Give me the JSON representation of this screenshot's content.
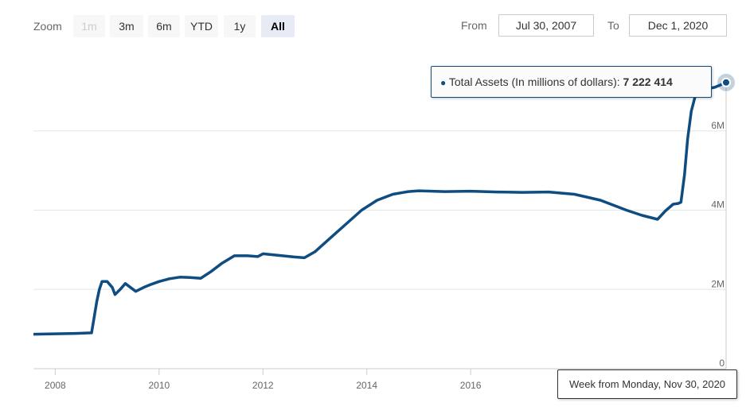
{
  "toolbar": {
    "zoom_label": "Zoom",
    "buttons": [
      {
        "label": "1m",
        "state": "disabled"
      },
      {
        "label": "3m",
        "state": "normal"
      },
      {
        "label": "6m",
        "state": "normal"
      },
      {
        "label": "YTD",
        "state": "normal"
      },
      {
        "label": "1y",
        "state": "normal"
      },
      {
        "label": "All",
        "state": "active"
      }
    ],
    "from_label": "From",
    "from_value": "Jul 30, 2007",
    "to_label": "To",
    "to_value": "Dec 1, 2020"
  },
  "tooltip": {
    "series_label": "Total Assets (In millions of dollars):",
    "value_text": "7 222 414"
  },
  "crosshair_label": "Week from Monday, Nov 30, 2020",
  "colors": {
    "line": "#0f4c81",
    "grid": "#e6e6e6",
    "active_button": "#e6ebf5"
  },
  "chart_data": {
    "type": "line",
    "xlabel": "",
    "ylabel": "",
    "x_ticks": [
      "2008",
      "2010",
      "2012",
      "2014",
      "2016"
    ],
    "y_ticks": [
      "0",
      "2M",
      "4M",
      "6M"
    ],
    "xlim": [
      2007.58,
      2020.92
    ],
    "ylim": [
      0,
      8000000
    ],
    "grid": true,
    "legend": "none",
    "series": [
      {
        "values": [
          [
            2007.58,
            870000
          ],
          [
            2008.0,
            880000
          ],
          [
            2008.4,
            890000
          ],
          [
            2008.7,
            905000
          ],
          [
            2008.75,
            1300000
          ],
          [
            2008.8,
            1700000
          ],
          [
            2008.85,
            2000000
          ],
          [
            2008.9,
            2200000
          ],
          [
            2009.0,
            2200000
          ],
          [
            2009.1,
            2050000
          ],
          [
            2009.15,
            1870000
          ],
          [
            2009.25,
            2000000
          ],
          [
            2009.35,
            2150000
          ],
          [
            2009.45,
            2050000
          ],
          [
            2009.55,
            1950000
          ],
          [
            2009.7,
            2050000
          ],
          [
            2009.85,
            2130000
          ],
          [
            2010.0,
            2200000
          ],
          [
            2010.2,
            2270000
          ],
          [
            2010.4,
            2310000
          ],
          [
            2010.6,
            2300000
          ],
          [
            2010.8,
            2280000
          ],
          [
            2011.0,
            2450000
          ],
          [
            2011.2,
            2650000
          ],
          [
            2011.45,
            2850000
          ],
          [
            2011.7,
            2850000
          ],
          [
            2011.9,
            2830000
          ],
          [
            2012.0,
            2900000
          ],
          [
            2012.3,
            2860000
          ],
          [
            2012.6,
            2820000
          ],
          [
            2012.8,
            2800000
          ],
          [
            2013.0,
            2950000
          ],
          [
            2013.3,
            3300000
          ],
          [
            2013.6,
            3650000
          ],
          [
            2013.9,
            4000000
          ],
          [
            2014.2,
            4250000
          ],
          [
            2014.5,
            4400000
          ],
          [
            2014.8,
            4470000
          ],
          [
            2015.0,
            4490000
          ],
          [
            2015.5,
            4470000
          ],
          [
            2016.0,
            4480000
          ],
          [
            2016.5,
            4460000
          ],
          [
            2017.0,
            4450000
          ],
          [
            2017.5,
            4460000
          ],
          [
            2018.0,
            4400000
          ],
          [
            2018.5,
            4250000
          ],
          [
            2019.0,
            4000000
          ],
          [
            2019.3,
            3870000
          ],
          [
            2019.6,
            3770000
          ],
          [
            2019.75,
            3980000
          ],
          [
            2019.9,
            4150000
          ],
          [
            2020.0,
            4170000
          ],
          [
            2020.05,
            4200000
          ],
          [
            2020.12,
            4900000
          ],
          [
            2020.18,
            5800000
          ],
          [
            2020.25,
            6500000
          ],
          [
            2020.35,
            7000000
          ],
          [
            2020.5,
            7050000
          ],
          [
            2020.7,
            7100000
          ],
          [
            2020.85,
            7180000
          ],
          [
            2020.92,
            7222414
          ]
        ]
      }
    ]
  }
}
